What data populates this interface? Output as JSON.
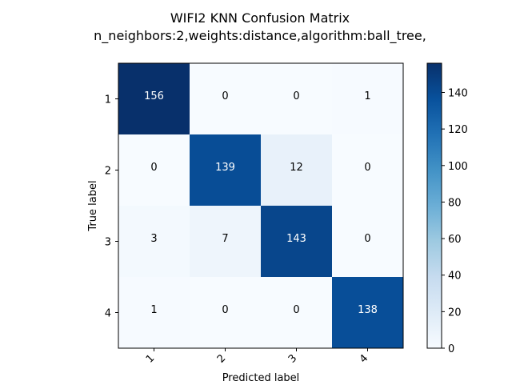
{
  "chart_data": {
    "type": "heatmap",
    "title": "WIFI2 KNN Confusion Matrix",
    "subtitle": "n_neighbors:2,weights:distance,algorithm:ball_tree,",
    "xlabel": "Predicted label",
    "ylabel": "True label",
    "x_categories": [
      "1",
      "2",
      "3",
      "4"
    ],
    "y_categories": [
      "1",
      "2",
      "3",
      "4"
    ],
    "matrix": [
      [
        156,
        0,
        0,
        1
      ],
      [
        0,
        139,
        12,
        0
      ],
      [
        3,
        7,
        143,
        0
      ],
      [
        1,
        0,
        0,
        138
      ]
    ],
    "colormap": "Blues",
    "colorbar": {
      "range": [
        0,
        156
      ],
      "ticks": [
        "0",
        "20",
        "40",
        "60",
        "80",
        "100",
        "120",
        "140"
      ]
    }
  }
}
